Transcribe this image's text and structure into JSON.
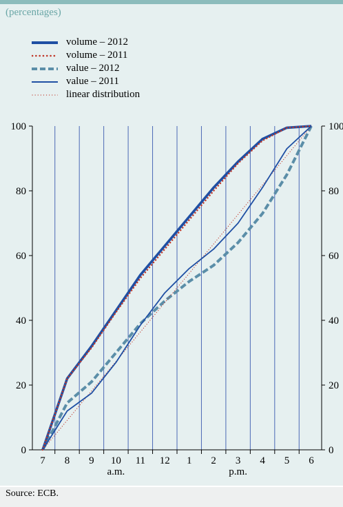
{
  "subtitle": "(percentages)",
  "source": "Source: ECB.",
  "colors": {
    "background": "#e6f0f0",
    "accent": "#8cbcbc",
    "volume_2012": "#1f4fa3",
    "volume_2011": "#c0392b",
    "value_2012": "#5b8ea8",
    "value_2011": "#1f4fa3",
    "linear": "#c0392b"
  },
  "chart_data": {
    "type": "line",
    "xlabel": "",
    "ylabel": "",
    "ylim": [
      0,
      100
    ],
    "yticks": [
      0,
      20,
      40,
      60,
      80,
      100
    ],
    "x": [
      7,
      8,
      9,
      10,
      11,
      12,
      1,
      2,
      3,
      4,
      5,
      6
    ],
    "x_tick_labels": [
      "7",
      "8",
      "9",
      "10",
      "11",
      "12",
      "1",
      "2",
      "3",
      "4",
      "5",
      "6"
    ],
    "period_labels": [
      {
        "text": "a.m.",
        "at_category": "10"
      },
      {
        "text": "p.m.",
        "at_category": "3"
      }
    ],
    "grid": "vertical",
    "legend_position": "top-left",
    "series": [
      {
        "name": "volume – 2012",
        "style": "thick-solid",
        "color": "#1f4fa3",
        "values": [
          0,
          22,
          32,
          43,
          54,
          63,
          72,
          81,
          89,
          96,
          99.5,
          100
        ]
      },
      {
        "name": "volume – 2011",
        "style": "dotted",
        "color": "#c0392b",
        "values": [
          0,
          22,
          31.5,
          42.5,
          53,
          62,
          71,
          80,
          88.5,
          95.5,
          99.5,
          100
        ]
      },
      {
        "name": "value – 2012",
        "style": "thick-dashed",
        "color": "#5b8ea8",
        "values": [
          0,
          14.5,
          21,
          30,
          39,
          46,
          52,
          57,
          64,
          73,
          85,
          100
        ]
      },
      {
        "name": "value – 2011",
        "style": "solid",
        "color": "#1f4fa3",
        "values": [
          0,
          12,
          17.5,
          27,
          38.5,
          48.5,
          56,
          62,
          70,
          81,
          93,
          100
        ]
      },
      {
        "name": "linear distribution",
        "style": "fine-dotted",
        "color": "#c0392b",
        "values": [
          0,
          9.1,
          18.2,
          27.3,
          36.4,
          45.5,
          54.5,
          63.6,
          72.7,
          81.8,
          90.9,
          100
        ]
      }
    ]
  }
}
